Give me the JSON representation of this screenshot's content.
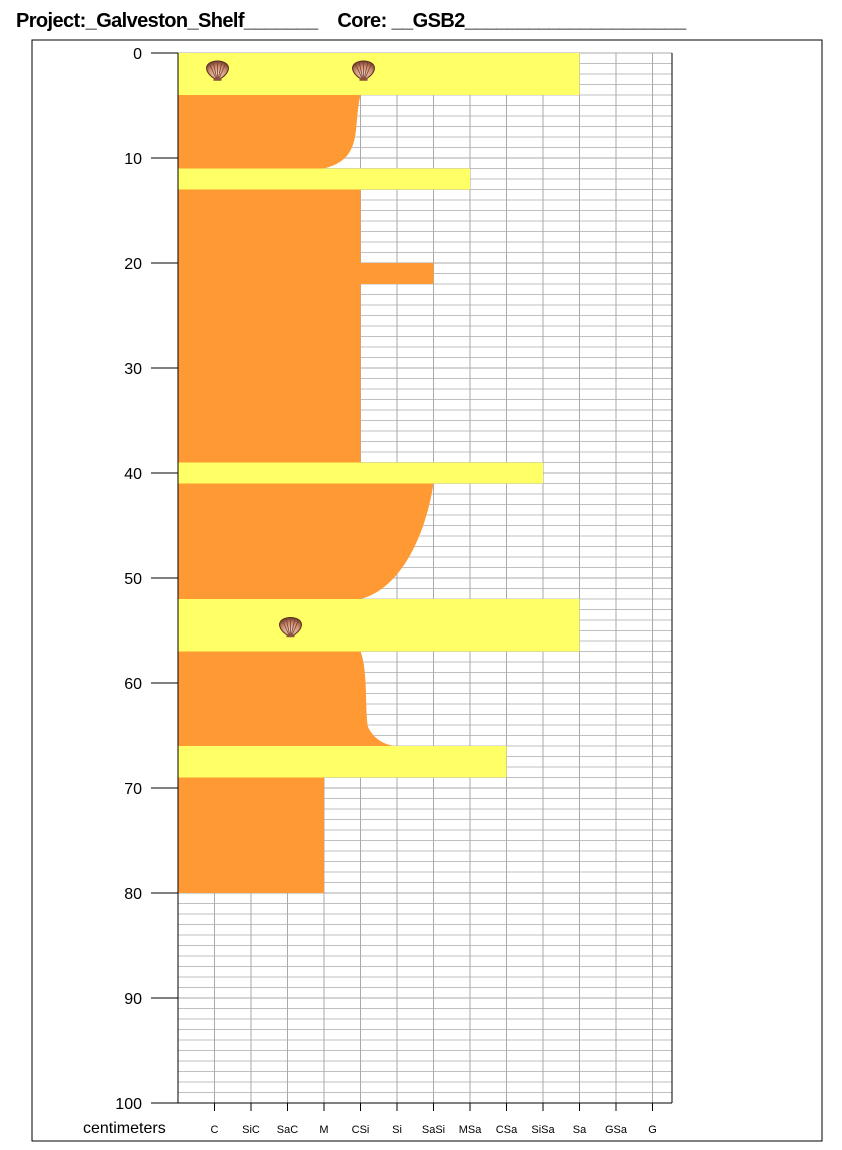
{
  "header": {
    "project_label": "Project:",
    "project_value": "_Galveston_Shelf_______",
    "core_label": "Core:",
    "core_value": "__GSB2_____________________"
  },
  "chart_data": {
    "type": "area",
    "title": "",
    "xlabel": "",
    "ylabel": "centimeters",
    "ylim": [
      0,
      100
    ],
    "y_inverted": true,
    "y_ticks": [
      "0",
      "10",
      "20",
      "30",
      "40",
      "50",
      "60",
      "70",
      "80",
      "90",
      "100"
    ],
    "grain_size_classes": [
      "C",
      "SiC",
      "SaC",
      "M",
      "CSi",
      "Si",
      "SaSi",
      "MSa",
      "CSa",
      "SiSa",
      "Sa",
      "GSa",
      "G"
    ],
    "grid": true,
    "colors": {
      "mud": "#ff9933",
      "sand": "#ffff66",
      "grid": "#aaaaaa"
    },
    "layers": [
      {
        "lithology": "sand",
        "top": 0,
        "bottom": 4,
        "grain_top": "Sa",
        "grain_bottom": "Sa"
      },
      {
        "lithology": "mud",
        "top": 4,
        "bottom": 11,
        "grain_top": "CSi",
        "grain_bottom": "M",
        "note": "fining downward"
      },
      {
        "lithology": "sand",
        "top": 11,
        "bottom": 13,
        "grain_top": "MSa",
        "grain_bottom": "MSa"
      },
      {
        "lithology": "mud",
        "top": 13,
        "bottom": 20,
        "grain_top": "CSi",
        "grain_bottom": "CSi"
      },
      {
        "lithology": "mud",
        "top": 20,
        "bottom": 22,
        "grain_top": "SaSi",
        "grain_bottom": "SaSi"
      },
      {
        "lithology": "mud",
        "top": 22,
        "bottom": 39,
        "grain_top": "CSi",
        "grain_bottom": "CSi"
      },
      {
        "lithology": "sand",
        "top": 39,
        "bottom": 41,
        "grain_top": "SiSa",
        "grain_bottom": "SiSa"
      },
      {
        "lithology": "mud",
        "top": 41,
        "bottom": 52,
        "grain_top": "SaSi",
        "grain_bottom": "CSi",
        "note": "fining downward"
      },
      {
        "lithology": "sand",
        "top": 52,
        "bottom": 57,
        "grain_top": "Sa",
        "grain_bottom": "Sa"
      },
      {
        "lithology": "mud",
        "top": 57,
        "bottom": 66,
        "grain_top": "CSi",
        "grain_bottom": "Si",
        "note": "coarsening downward"
      },
      {
        "lithology": "sand",
        "top": 66,
        "bottom": 69,
        "grain_top": "CSa",
        "grain_bottom": "CSa"
      },
      {
        "lithology": "mud",
        "top": 69,
        "bottom": 80,
        "grain_top": "M",
        "grain_bottom": "M"
      }
    ],
    "shells": [
      {
        "depth": 1.5,
        "grain": "C"
      },
      {
        "depth": 1.5,
        "grain": "CSi"
      },
      {
        "depth": 54.5,
        "grain": "SaC"
      }
    ],
    "icons": {
      "shell": "shell-icon"
    }
  }
}
